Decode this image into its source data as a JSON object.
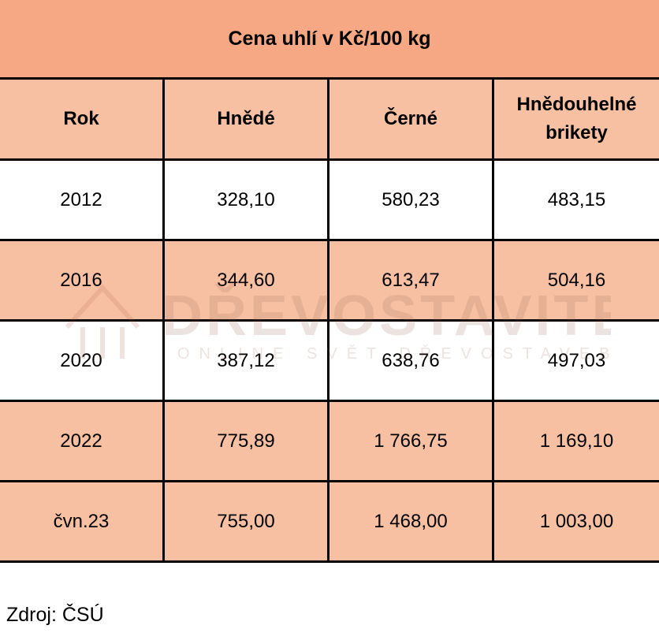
{
  "chart_data": {
    "type": "table",
    "title": "Cena uhlí v Kč/100 kg",
    "columns": [
      "Rok",
      "Hnědé",
      "Černé",
      "Hnědouhelné brikety"
    ],
    "rows": [
      [
        "2012",
        "328,10",
        "580,23",
        "483,15"
      ],
      [
        "2016",
        "344,60",
        "613,47",
        "504,16"
      ],
      [
        "2020",
        "387,12",
        "638,76",
        "497,03"
      ],
      [
        "2022",
        "775,89",
        "1 766,75",
        "1 169,10"
      ],
      [
        "čvn.23",
        "755,00",
        "1 468,00",
        "1 003,00"
      ]
    ],
    "source": "Zdroj: ČSÚ",
    "watermark": {
      "brand": "DŘEVOSTAVITEL",
      "tagline": "ONLINE SVĚT DŘEVOSTAVEB"
    }
  },
  "colors": {
    "header_fill": "#f5a883",
    "row_fill_orange": "#f7c0a3",
    "row_fill_white": "#ffffff"
  }
}
